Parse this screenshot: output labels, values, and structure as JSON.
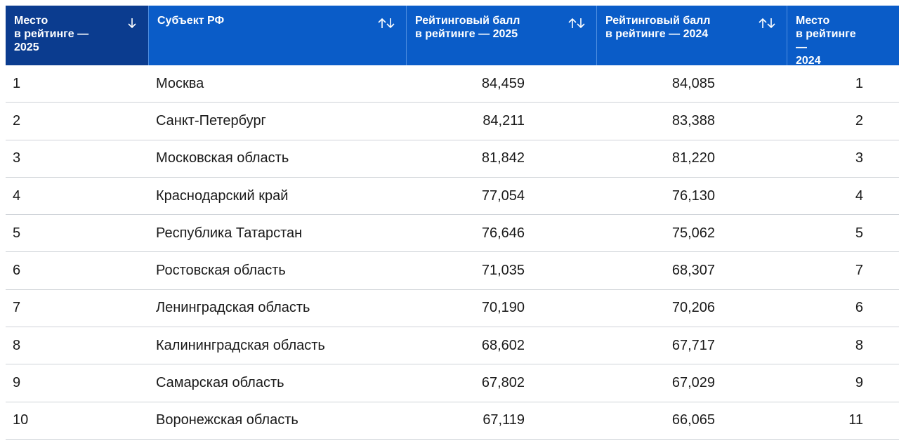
{
  "table": {
    "headers": [
      "Место\nв рейтинге —\n2025",
      "Субъект РФ",
      "Рейтинговый балл\nв рейтинге — 2025",
      "Рейтинговый балл\nв рейтинге — 2024",
      "Место\nв рейтинге —\n2024"
    ],
    "rows": [
      [
        "1",
        "Москва",
        "84,459",
        "84,085",
        "1"
      ],
      [
        "2",
        "Санкт-Петербург",
        "84,211",
        "83,388",
        "2"
      ],
      [
        "3",
        "Московская область",
        "81,842",
        "81,220",
        "3"
      ],
      [
        "4",
        "Краснодарский край",
        "77,054",
        "76,130",
        "4"
      ],
      [
        "5",
        "Республика Татарстан",
        "76,646",
        "75,062",
        "5"
      ],
      [
        "6",
        "Ростовская область",
        "71,035",
        "68,307",
        "7"
      ],
      [
        "7",
        "Ленинградская область",
        "70,190",
        "70,206",
        "6"
      ],
      [
        "8",
        "Калининградская область",
        "68,602",
        "67,717",
        "8"
      ],
      [
        "9",
        "Самарская область",
        "67,802",
        "67,029",
        "9"
      ],
      [
        "10",
        "Воронежская область",
        "67,119",
        "66,065",
        "11"
      ]
    ]
  }
}
